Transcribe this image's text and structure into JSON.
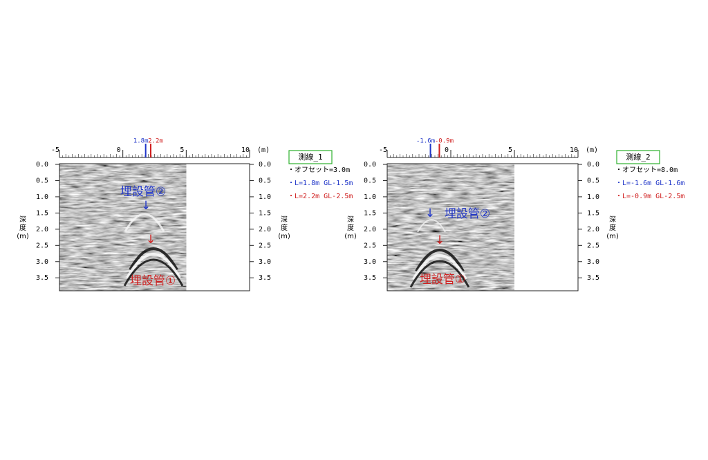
{
  "chart_data": [
    {
      "type": "radargram",
      "xlim": [
        -5,
        10
      ],
      "xticks": [
        -5,
        0,
        5,
        10
      ],
      "x_unit": "(m)",
      "ylim": [
        0,
        3.9
      ],
      "yticks": [
        {
          "value": 0,
          "label": "0.0"
        },
        {
          "value": 0.5,
          "label": "0.5"
        },
        {
          "value": 1,
          "label": "1.0"
        },
        {
          "value": 1.5,
          "label": "1.5"
        },
        {
          "value": 2,
          "label": "2.0"
        },
        {
          "value": 2.5,
          "label": "2.5"
        },
        {
          "value": 3,
          "label": "3.0"
        },
        {
          "value": 3.5,
          "label": "3.5"
        }
      ],
      "y_label": [
        "深",
        "度",
        "(m)"
      ],
      "markers": [
        {
          "value": 1.8,
          "label": "1.8m",
          "color": "#1f35c8"
        },
        {
          "value": 2.2,
          "label": "2.2m",
          "color": "#d02020"
        }
      ],
      "annotations": [
        {
          "text": "埋設管②",
          "color": "#1f35c8"
        },
        {
          "text": "↓",
          "color": "#1f35c8"
        },
        {
          "text": "↓",
          "color": "#d02020"
        },
        {
          "text": "埋設管①",
          "color": "#d02020"
        }
      ],
      "legend": {
        "title": "測線_1",
        "items": [
          {
            "text": "・オフセット=3.0m",
            "color": "#000000"
          },
          {
            "text": "・L=1.8m GL-1.5m",
            "color": "#1f35c8"
          },
          {
            "text": "・L=2.2m GL-2.5m",
            "color": "#d02020"
          }
        ]
      }
    },
    {
      "type": "radargram",
      "xlim": [
        -5,
        10
      ],
      "xticks": [
        -5,
        0,
        5,
        10
      ],
      "x_unit": "(m)",
      "ylim": [
        0,
        3.9
      ],
      "yticks": [
        {
          "value": 0,
          "label": "0.0"
        },
        {
          "value": 0.5,
          "label": "0.5"
        },
        {
          "value": 1,
          "label": "1.0"
        },
        {
          "value": 1.5,
          "label": "1.5"
        },
        {
          "value": 2,
          "label": "2.0"
        },
        {
          "value": 2.5,
          "label": "2.5"
        },
        {
          "value": 3,
          "label": "3.0"
        },
        {
          "value": 3.5,
          "label": "3.5"
        }
      ],
      "y_label": [
        "深",
        "度",
        "(m)"
      ],
      "markers": [
        {
          "value": -1.6,
          "label": "-1.6m",
          "color": "#1f35c8"
        },
        {
          "value": -0.9,
          "label": "-0.9m",
          "color": "#d02020"
        }
      ],
      "annotations": [
        {
          "text": "↓",
          "color": "#1f35c8"
        },
        {
          "text": "埋設管②",
          "color": "#1f35c8"
        },
        {
          "text": "↓",
          "color": "#d02020"
        },
        {
          "text": "埋設管①",
          "color": "#d02020"
        }
      ],
      "legend": {
        "title": "測線_2",
        "items": [
          {
            "text": "・オフセット=8.0m",
            "color": "#000000"
          },
          {
            "text": "・L=-1.6m GL-1.6m",
            "color": "#1f35c8"
          },
          {
            "text": "・L=-0.9m GL-2.5m",
            "color": "#d02020"
          }
        ]
      }
    }
  ]
}
